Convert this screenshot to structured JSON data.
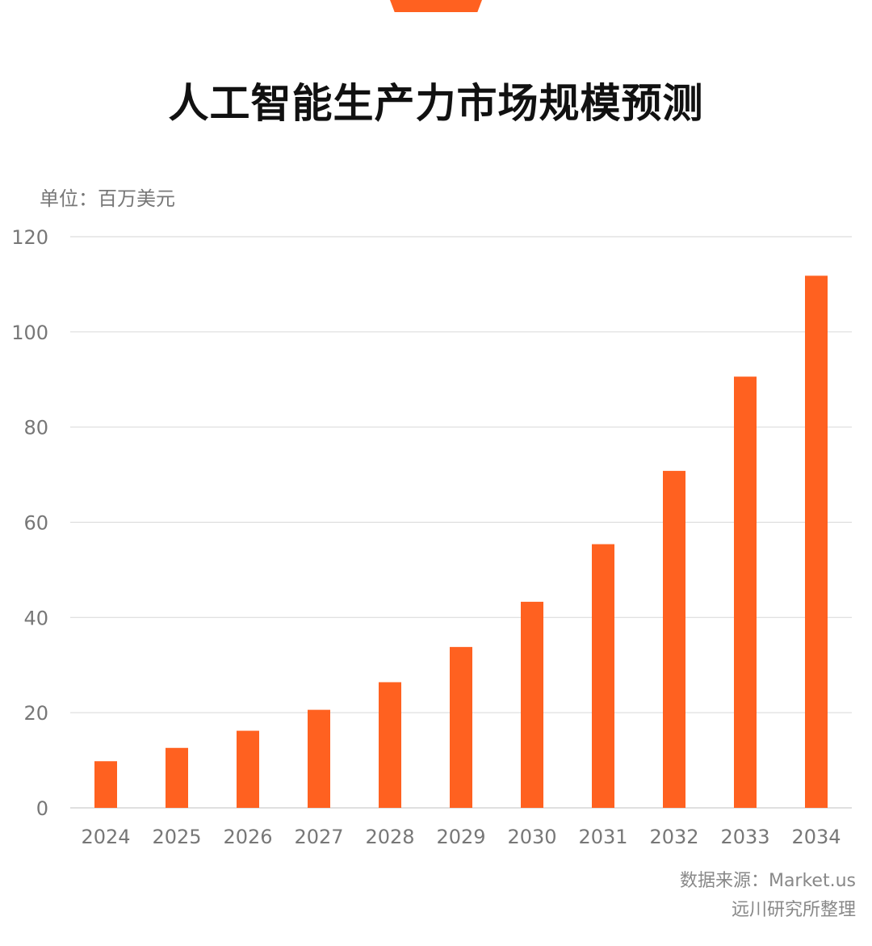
{
  "header": {
    "title": "人工智能生产力市场规模预测",
    "unit": "单位：百万美元"
  },
  "footer": {
    "source": "数据来源：Market.us",
    "compiled_by": "远川研究所整理"
  },
  "colors": {
    "bar": "#FF6120",
    "accent": "#FF6120",
    "grid": "#DDDDDD",
    "tick_text": "#777777"
  },
  "chart_data": {
    "type": "bar",
    "title": "人工智能生产力市场规模预测",
    "ylabel": "单位：百万美元",
    "categories": [
      "2024",
      "2025",
      "2026",
      "2027",
      "2028",
      "2029",
      "2030",
      "2031",
      "2032",
      "2033",
      "2034"
    ],
    "values": [
      9.8,
      12.6,
      16.2,
      20.6,
      26.4,
      33.8,
      43.3,
      55.4,
      70.8,
      90.6,
      111.8
    ],
    "ylim": [
      0,
      120
    ],
    "yticks": [
      0,
      20,
      40,
      60,
      80,
      100,
      120
    ],
    "grid": true,
    "legend": "none"
  }
}
